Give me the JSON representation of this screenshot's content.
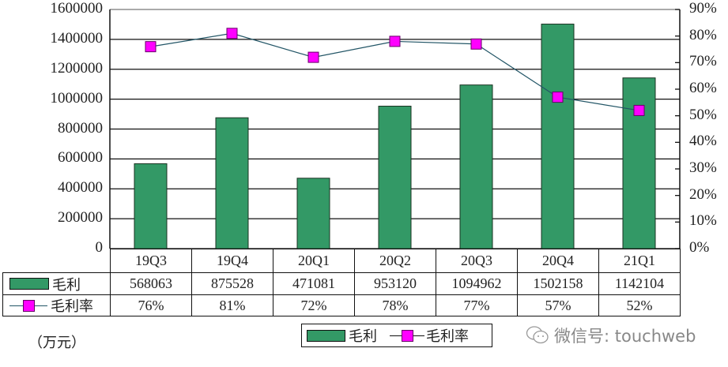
{
  "chart_data": {
    "type": "bar+line",
    "title": "",
    "categories": [
      "19Q3",
      "19Q4",
      "20Q1",
      "20Q2",
      "20Q3",
      "20Q4",
      "21Q1"
    ],
    "series": [
      {
        "name": "毛利",
        "type": "bar",
        "axis": "left",
        "color": "#339966",
        "values": [
          568063,
          875528,
          471081,
          953120,
          1094962,
          1502158,
          1142104
        ]
      },
      {
        "name": "毛利率",
        "type": "line",
        "axis": "right",
        "color": "#ff00ff",
        "line_color": "#225566",
        "values": [
          76,
          81,
          72,
          78,
          77,
          57,
          52
        ],
        "labels": [
          "76%",
          "81%",
          "72%",
          "78%",
          "77%",
          "57%",
          "52%"
        ]
      }
    ],
    "ylim": [
      0,
      1600000
    ],
    "y_ticks": [
      "0",
      "200000",
      "400000",
      "600000",
      "800000",
      "1000000",
      "1200000",
      "1400000",
      "1600000"
    ],
    "y2lim": [
      0,
      90
    ],
    "y2_ticks": [
      "0%",
      "10%",
      "20%",
      "30%",
      "40%",
      "50%",
      "60%",
      "70%",
      "80%",
      "90%"
    ],
    "xlabel": "",
    "ylabel": "（万元）",
    "grid": true,
    "legend_position": "bottom",
    "data_table": true
  },
  "table": {
    "rows": [
      {
        "label": "毛利",
        "values": [
          "568063",
          "875528",
          "471081",
          "953120",
          "1094962",
          "1502158",
          "1142104"
        ]
      },
      {
        "label": "毛利率",
        "values": [
          "76%",
          "81%",
          "72%",
          "78%",
          "77%",
          "57%",
          "52%"
        ]
      }
    ]
  },
  "unit_label": "（万元）",
  "legend": {
    "bar_label": "毛利",
    "line_label": "毛利率"
  },
  "watermark": {
    "text": "微信号: touchweb"
  }
}
